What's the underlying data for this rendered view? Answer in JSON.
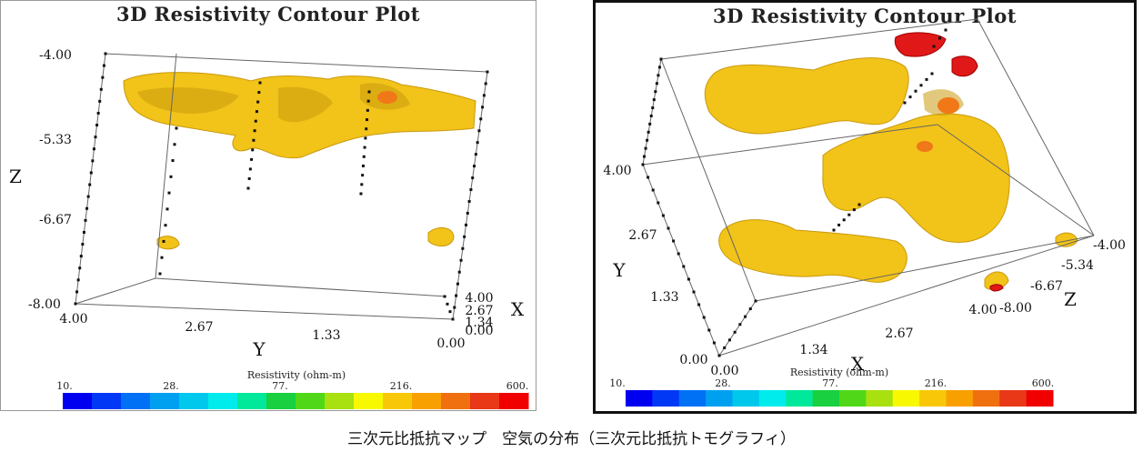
{
  "caption": "三次元比抵抗マップ　空気の分布（三次元比抵抗トモグラフィ）",
  "colors": {
    "isosurface_main": "#f2c318",
    "isosurface_shade": "#c99a10",
    "isosurface_high": "#f07818",
    "isosurface_peak": "#e01818",
    "box_line": "#666666"
  },
  "colorbar": {
    "title": "Resistivity (ohm-m)",
    "labels": [
      "10.",
      "28.",
      "77.",
      "216.",
      "600."
    ],
    "colors": [
      "#0000f0",
      "#0038f5",
      "#0070f5",
      "#00a0f0",
      "#00c8ec",
      "#00ecec",
      "#00e89a",
      "#18d040",
      "#50d818",
      "#a8e010",
      "#f8f800",
      "#f8c808",
      "#f8a000",
      "#f07010",
      "#e83818",
      "#f00000"
    ]
  },
  "chart_data": [
    {
      "type": "3d-isosurface",
      "title": "3D Resistivity Contour Plot",
      "view": "side (Y-Z face)",
      "z_label": "Z",
      "y_label": "Y",
      "x_label": "X",
      "z_ticks": [
        "-4.00",
        "-5.33",
        "-6.67",
        "-8.00"
      ],
      "y_ticks": [
        "4.00",
        "2.67",
        "1.33",
        "0.00"
      ],
      "x_ticks": [
        "4.00",
        "2.67",
        "1.34",
        "0.00"
      ],
      "zlim": [
        -8.0,
        -4.0
      ],
      "ylim": [
        0.0,
        4.0
      ],
      "xlim": [
        0.0,
        4.0
      ],
      "colorbar_range_ohm_m": [
        10,
        600
      ]
    },
    {
      "type": "3d-isosurface",
      "title": "3D Resistivity Contour Plot",
      "view": "top (X-Y face)",
      "y_label": "Y",
      "x_label": "X",
      "z_label": "Z",
      "y_ticks": [
        "4.00",
        "2.67",
        "1.33",
        "0.00"
      ],
      "x_ticks": [
        "0.00",
        "1.34",
        "2.67",
        "4.00"
      ],
      "z_ticks": [
        "-4.00",
        "-5.34",
        "-6.67",
        "-8.00"
      ],
      "xlim": [
        0.0,
        4.0
      ],
      "ylim": [
        0.0,
        4.0
      ],
      "zlim": [
        -8.0,
        -4.0
      ],
      "colorbar_range_ohm_m": [
        10,
        600
      ]
    }
  ]
}
